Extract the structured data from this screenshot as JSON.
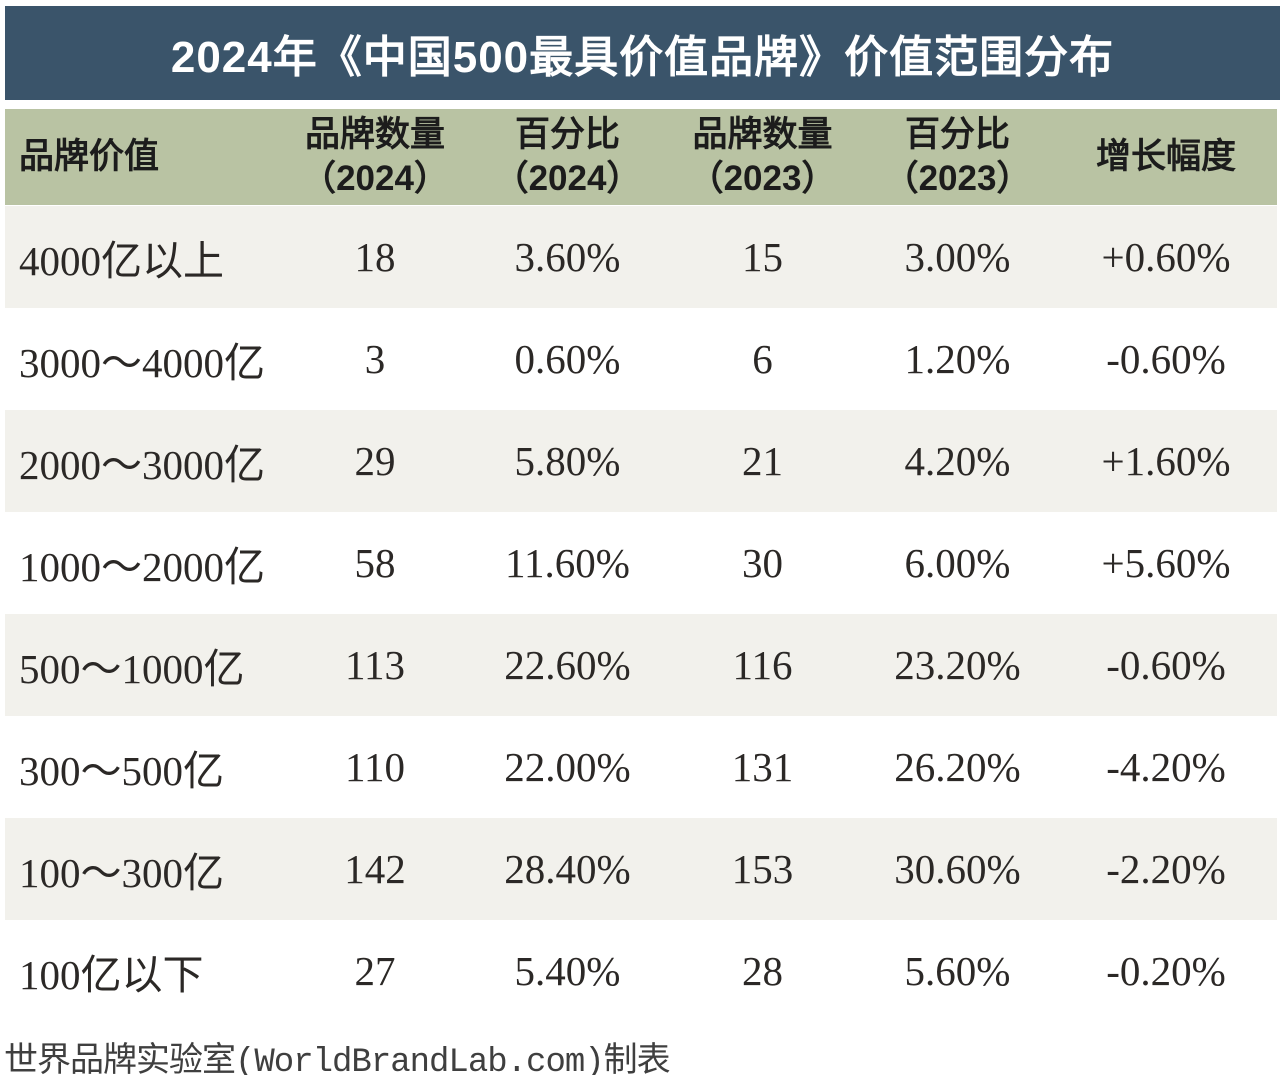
{
  "title": "2024年《中国500最具价值品牌》价值范围分布",
  "colors": {
    "title_bar_bg": "#3a546a",
    "title_text": "#ffffff",
    "header_bg": "#b9c3a3",
    "alt_row_bg": "#f2f1ec",
    "data_text": "#2b2826",
    "footer_text": "#3f3f3f"
  },
  "table": {
    "columns": [
      {
        "label": "品牌价值",
        "sub": ""
      },
      {
        "label": "品牌数量",
        "sub": "（2024）"
      },
      {
        "label": "百分比",
        "sub": "（2024）"
      },
      {
        "label": "品牌数量",
        "sub": "（2023）"
      },
      {
        "label": "百分比",
        "sub": "（2023）"
      },
      {
        "label": "增长幅度",
        "sub": ""
      }
    ],
    "rows": [
      [
        "4000亿以上",
        "18",
        "3.60%",
        "15",
        "3.00%",
        "+0.60%"
      ],
      [
        "3000～4000亿",
        "3",
        "0.60%",
        "6",
        "1.20%",
        "-0.60%"
      ],
      [
        "2000～3000亿",
        "29",
        "5.80%",
        "21",
        "4.20%",
        "+1.60%"
      ],
      [
        "1000～2000亿",
        "58",
        "11.60%",
        "30",
        "6.00%",
        "+5.60%"
      ],
      [
        "500～1000亿",
        "113",
        "22.60%",
        "116",
        "23.20%",
        "-0.60%"
      ],
      [
        "300～500亿",
        "110",
        "22.00%",
        "131",
        "26.20%",
        "-4.20%"
      ],
      [
        "100～300亿",
        "142",
        "28.40%",
        "153",
        "30.60%",
        "-2.20%"
      ],
      [
        "100亿以下",
        "27",
        "5.40%",
        "28",
        "5.60%",
        "-0.20%"
      ]
    ]
  },
  "footer": {
    "credit": "世界品牌实验室(WorldBrandLab.com)制表"
  },
  "chart_data": {
    "type": "table",
    "title": "2024年《中国500最具价值品牌》价值范围分布",
    "columns": [
      "品牌价值",
      "品牌数量（2024）",
      "百分比（2024）",
      "品牌数量（2023）",
      "百分比（2023）",
      "增长幅度"
    ],
    "categories": [
      "4000亿以上",
      "3000～4000亿",
      "2000～3000亿",
      "1000～2000亿",
      "500～1000亿",
      "300～500亿",
      "100～300亿",
      "100亿以下"
    ],
    "series": [
      {
        "name": "品牌数量（2024）",
        "values": [
          18,
          3,
          29,
          58,
          113,
          110,
          142,
          27
        ]
      },
      {
        "name": "百分比（2024）",
        "values": [
          3.6,
          0.6,
          5.8,
          11.6,
          22.6,
          22.0,
          28.4,
          5.4
        ]
      },
      {
        "name": "品牌数量（2023）",
        "values": [
          15,
          6,
          21,
          30,
          116,
          131,
          153,
          28
        ]
      },
      {
        "name": "百分比（2023）",
        "values": [
          3.0,
          1.2,
          4.2,
          6.0,
          23.2,
          26.2,
          30.6,
          5.6
        ]
      },
      {
        "name": "增长幅度",
        "values": [
          0.6,
          -0.6,
          1.6,
          5.6,
          -0.6,
          -4.2,
          -2.2,
          -0.2
        ]
      }
    ],
    "source_note": "世界品牌实验室(WorldBrandLab.com)制表"
  }
}
